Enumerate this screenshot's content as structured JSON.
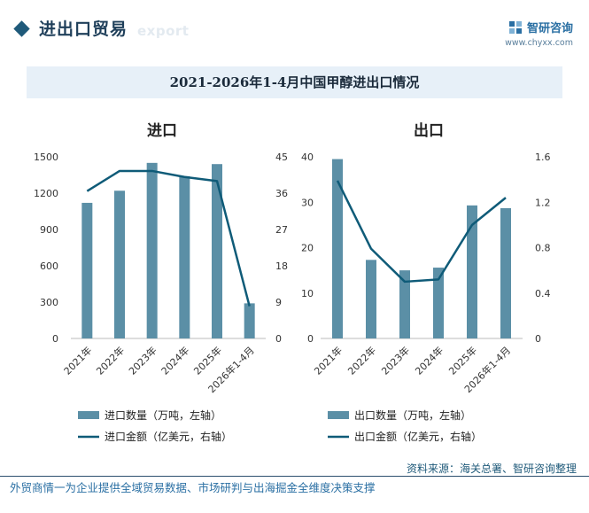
{
  "header": {
    "section_title": "进出口贸易",
    "section_subtitle": "export",
    "brand_name": "智研咨询",
    "brand_url": "www.chyxx.com"
  },
  "chart_title": "2021-2026年1-4月中国甲醇进出口情况",
  "chart_data": [
    {
      "type": "bar",
      "title": "进口",
      "categories": [
        "2021年",
        "2022年",
        "2023年",
        "2024年",
        "2025年",
        "2026年1-4月"
      ],
      "series": [
        {
          "name": "进口数量（万吨，左轴）",
          "kind": "bar",
          "axis": "left",
          "color": "#5b8fa6",
          "values": [
            1120,
            1220,
            1450,
            1340,
            1440,
            290
          ]
        },
        {
          "name": "进口金额（亿美元，右轴）",
          "kind": "line",
          "axis": "right",
          "color": "#0f5b78",
          "values": [
            36.5,
            41.5,
            41.5,
            40,
            39,
            8
          ]
        }
      ],
      "y_left": {
        "min": 0,
        "max": 1500,
        "ticks": [
          "0",
          "300",
          "600",
          "900",
          "1200",
          "1500"
        ]
      },
      "y_right": {
        "min": 0,
        "max": 45,
        "ticks": [
          "0",
          "9",
          "18",
          "27",
          "36",
          "45"
        ]
      }
    },
    {
      "type": "bar",
      "title": "出口",
      "categories": [
        "2021年",
        "2022年",
        "2023年",
        "2024年",
        "2025年",
        "2026年1-4月"
      ],
      "series": [
        {
          "name": "出口数量（万吨，左轴）",
          "kind": "bar",
          "axis": "left",
          "color": "#5b8fa6",
          "values": [
            39.5,
            17.3,
            15,
            15.6,
            29.3,
            28.7
          ]
        },
        {
          "name": "出口金额（亿美元，右轴）",
          "kind": "line",
          "axis": "right",
          "color": "#0f5b78",
          "values": [
            1.39,
            0.79,
            0.5,
            0.52,
            1.0,
            1.24
          ]
        }
      ],
      "y_left": {
        "min": 0,
        "max": 40,
        "ticks": [
          "0",
          "10",
          "20",
          "30",
          "40"
        ]
      },
      "y_right": {
        "min": 0,
        "max": 1.6,
        "ticks": [
          "0",
          "0.4",
          "0.8",
          "1.2",
          "1.6"
        ]
      }
    }
  ],
  "source": "资料来源：海关总署、智研咨询整理",
  "footer": "外贸商情一为企业提供全域贸易数据、市场研判与出海掘金全维度决策支撑"
}
